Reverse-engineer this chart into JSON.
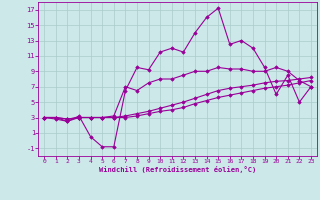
{
  "xlabel": "Windchill (Refroidissement éolien,°C)",
  "x_ticks": [
    0,
    1,
    2,
    3,
    4,
    5,
    6,
    7,
    8,
    9,
    10,
    11,
    12,
    13,
    14,
    15,
    16,
    17,
    18,
    19,
    20,
    21,
    22,
    23
  ],
  "y_ticks": [
    -1,
    1,
    3,
    5,
    7,
    9,
    11,
    13,
    15,
    17
  ],
  "xlim": [
    -0.5,
    23.5
  ],
  "ylim": [
    -2,
    18
  ],
  "bg_color": "#cce8e8",
  "line_color": "#990099",
  "grid_color": "#aacccc",
  "lines": [
    [
      3.0,
      2.8,
      2.5,
      3.2,
      0.5,
      -0.8,
      -0.8,
      6.5,
      9.5,
      9.2,
      11.5,
      12.0,
      11.5,
      14.0,
      16.0,
      17.2,
      12.5,
      13.0,
      12.0,
      9.5,
      6.0,
      8.5,
      5.0,
      7.0
    ],
    [
      3.0,
      3.0,
      2.5,
      3.0,
      3.0,
      3.0,
      3.2,
      7.0,
      6.5,
      7.5,
      8.0,
      8.0,
      8.5,
      9.0,
      9.0,
      9.5,
      9.3,
      9.3,
      9.0,
      9.0,
      9.5,
      9.0,
      7.8,
      7.0
    ],
    [
      3.0,
      3.0,
      2.8,
      3.0,
      3.0,
      3.0,
      3.0,
      3.2,
      3.5,
      3.8,
      4.2,
      4.6,
      5.0,
      5.5,
      6.0,
      6.5,
      6.8,
      7.0,
      7.2,
      7.5,
      7.7,
      7.8,
      8.0,
      8.2
    ],
    [
      3.0,
      3.0,
      2.8,
      3.0,
      3.0,
      3.0,
      3.0,
      3.0,
      3.2,
      3.5,
      3.8,
      4.0,
      4.3,
      4.8,
      5.2,
      5.6,
      5.9,
      6.2,
      6.5,
      6.8,
      7.0,
      7.2,
      7.5,
      7.8
    ]
  ]
}
